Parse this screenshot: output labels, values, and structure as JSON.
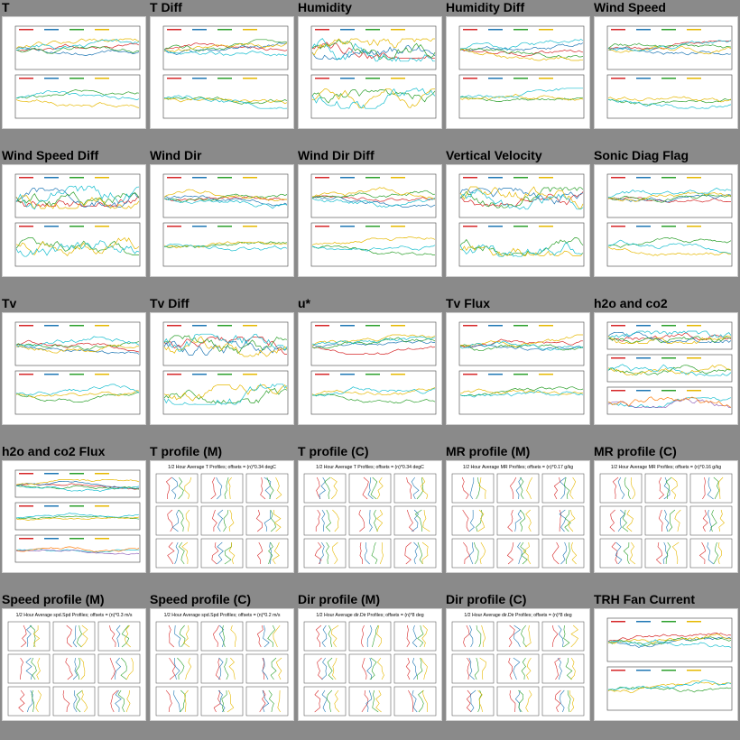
{
  "thumbnails": [
    {
      "title": "T",
      "kind": "ts"
    },
    {
      "title": "T Diff",
      "kind": "ts"
    },
    {
      "title": "Humidity",
      "kind": "ts"
    },
    {
      "title": "Humidity Diff",
      "kind": "ts"
    },
    {
      "title": "Wind Speed",
      "kind": "ts"
    },
    {
      "title": "Wind Speed Diff",
      "kind": "ts"
    },
    {
      "title": "Wind Dir",
      "kind": "ts"
    },
    {
      "title": "Wind Dir Diff",
      "kind": "ts"
    },
    {
      "title": "Vertical Velocity",
      "kind": "ts"
    },
    {
      "title": "Sonic Diag Flag",
      "kind": "ts"
    },
    {
      "title": "Tv",
      "kind": "ts"
    },
    {
      "title": "Tv Diff",
      "kind": "ts"
    },
    {
      "title": "u*",
      "kind": "ts"
    },
    {
      "title": "Tv Flux",
      "kind": "ts"
    },
    {
      "title": "h2o and co2",
      "kind": "ts3"
    },
    {
      "title": "h2o and co2 Flux",
      "kind": "ts3"
    },
    {
      "title": "T profile (M)",
      "kind": "profile",
      "plot_title": "1/2 Hour Average T Profiles; offsets = (n)*0.34 degC"
    },
    {
      "title": "T profile (C)",
      "kind": "profile",
      "plot_title": "1/2 Hour Average T Profiles; offsets = (n)*0.34 degC"
    },
    {
      "title": "MR profile (M)",
      "kind": "profile",
      "plot_title": "1/2 Hour Average MR Profiles; offsets = (n)*0.17 g/kg"
    },
    {
      "title": "MR profile (C)",
      "kind": "profile",
      "plot_title": "1/2 Hour Average MR Profiles; offsets = (n)*0.16 g/kg"
    },
    {
      "title": "Speed profile (M)",
      "kind": "profile",
      "plot_title": "1/2 Hour Average spd.Spd Profiles; offsets = (n)*0.3 m/s"
    },
    {
      "title": "Speed profile (C)",
      "kind": "profile",
      "plot_title": "1/2 Hour Average spd.Spd Profiles; offsets = (n)*0.2 m/s"
    },
    {
      "title": "Dir profile (M)",
      "kind": "profile",
      "plot_title": "1/2 Hour Average dir.Dir Profiles; offsets = (n)*8 deg"
    },
    {
      "title": "Dir profile (C)",
      "kind": "profile",
      "plot_title": "1/2 Hour Average dir.Dir Profiles; offsets = (n)*8 deg"
    },
    {
      "title": "TRH Fan Current",
      "kind": "ts"
    }
  ],
  "colors": {
    "page_background": "#8a8a8a",
    "series": [
      "#d62728",
      "#1f77b4",
      "#2ca02c",
      "#e6b800",
      "#17becf",
      "#9467bd",
      "#ff7f0e",
      "#7f7f7f"
    ]
  }
}
